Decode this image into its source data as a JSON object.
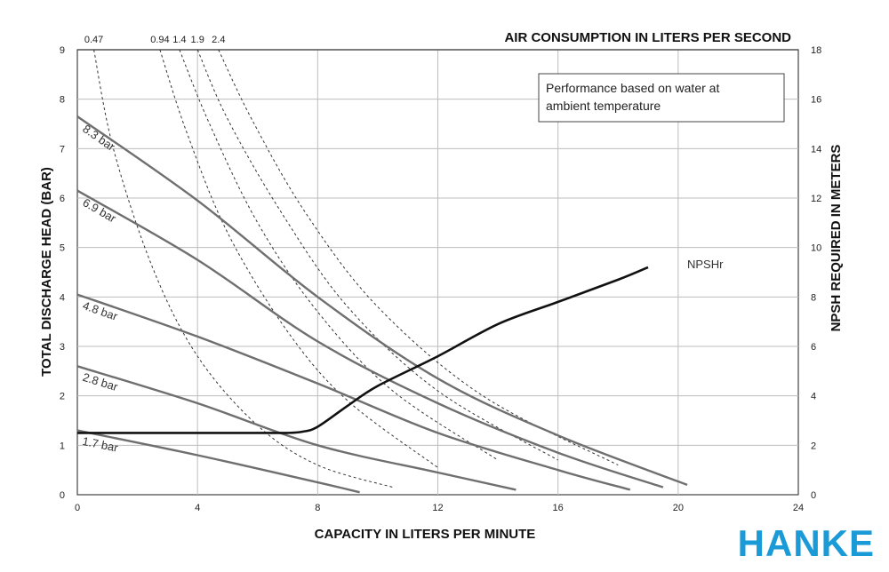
{
  "chart_data": {
    "type": "line",
    "xlabel": "CAPACITY IN LITERS PER MINUTE",
    "ylabel": "TOTAL DISCHARGE HEAD (BAR)",
    "y2label": "NPSH REQUIRED IN METERS",
    "top_axis_label": "AIR CONSUMPTION IN LITERS PER SECOND",
    "xlim": [
      0,
      24
    ],
    "ylim": [
      0,
      9
    ],
    "y2lim": [
      0,
      18
    ],
    "x_ticks": [
      0,
      4,
      8,
      12,
      16,
      20,
      24
    ],
    "y_ticks": [
      0,
      1,
      2,
      3,
      4,
      5,
      6,
      7,
      8,
      9
    ],
    "y2_ticks": [
      0,
      2,
      4,
      6,
      8,
      10,
      12,
      14,
      16,
      18
    ],
    "grid": true,
    "note_lines": [
      "Performance based on water at",
      "ambient temperature"
    ],
    "pressure_curves": [
      {
        "name": "8.3 bar",
        "x": [
          0,
          4,
          8,
          12,
          16,
          20.3
        ],
        "y": [
          7.65,
          5.95,
          4.0,
          2.35,
          1.2,
          0.2
        ]
      },
      {
        "name": "6.9 bar",
        "x": [
          0,
          4,
          8,
          12,
          16,
          19.5
        ],
        "y": [
          6.15,
          4.75,
          3.1,
          1.85,
          0.85,
          0.15
        ]
      },
      {
        "name": "4.8 bar",
        "x": [
          0,
          4,
          8,
          12,
          16,
          18.4
        ],
        "y": [
          4.05,
          3.2,
          2.25,
          1.25,
          0.5,
          0.1
        ]
      },
      {
        "name": "2.8 bar",
        "x": [
          0,
          4,
          8,
          12,
          14.6
        ],
        "y": [
          2.6,
          1.85,
          1.0,
          0.45,
          0.1
        ]
      },
      {
        "name": "1.7 bar",
        "x": [
          0,
          4,
          8,
          9.4
        ],
        "y": [
          1.3,
          0.8,
          0.25,
          0.05
        ]
      }
    ],
    "air_consumption_curves": [
      {
        "name": "0.47",
        "x": [
          0.55,
          1.2,
          2.5,
          4.0,
          6.0,
          8.0,
          10.5
        ],
        "y": [
          9.0,
          7.0,
          4.6,
          2.8,
          1.4,
          0.6,
          0.15
        ]
      },
      {
        "name": "0.94",
        "x": [
          2.75,
          3.6,
          5.0,
          7.0,
          9.0,
          12.0
        ],
        "y": [
          9.0,
          7.4,
          5.3,
          3.3,
          1.9,
          0.55
        ]
      },
      {
        "name": "1.4",
        "x": [
          3.4,
          4.4,
          6.0,
          8.0,
          10.5,
          14.0
        ],
        "y": [
          9.0,
          7.5,
          5.5,
          3.7,
          2.1,
          0.7
        ]
      },
      {
        "name": "1.9",
        "x": [
          4.0,
          5.0,
          6.8,
          9.0,
          12.0,
          16.0
        ],
        "y": [
          9.0,
          7.6,
          5.7,
          3.8,
          2.1,
          0.7
        ]
      },
      {
        "name": "2.4",
        "x": [
          4.7,
          5.8,
          7.6,
          10.0,
          13.5,
          18.0
        ],
        "y": [
          9.0,
          7.6,
          5.7,
          3.8,
          2.0,
          0.6
        ]
      }
    ],
    "npshr": {
      "name": "NPSHr",
      "x": [
        0,
        2,
        4,
        6,
        7,
        7.5,
        8,
        9,
        10,
        12,
        14,
        16,
        18,
        19
      ],
      "y": [
        2.5,
        2.5,
        2.5,
        2.5,
        2.5,
        2.55,
        2.75,
        3.6,
        4.4,
        5.6,
        6.9,
        7.8,
        8.7,
        9.2
      ]
    }
  },
  "brand": "HANKE"
}
